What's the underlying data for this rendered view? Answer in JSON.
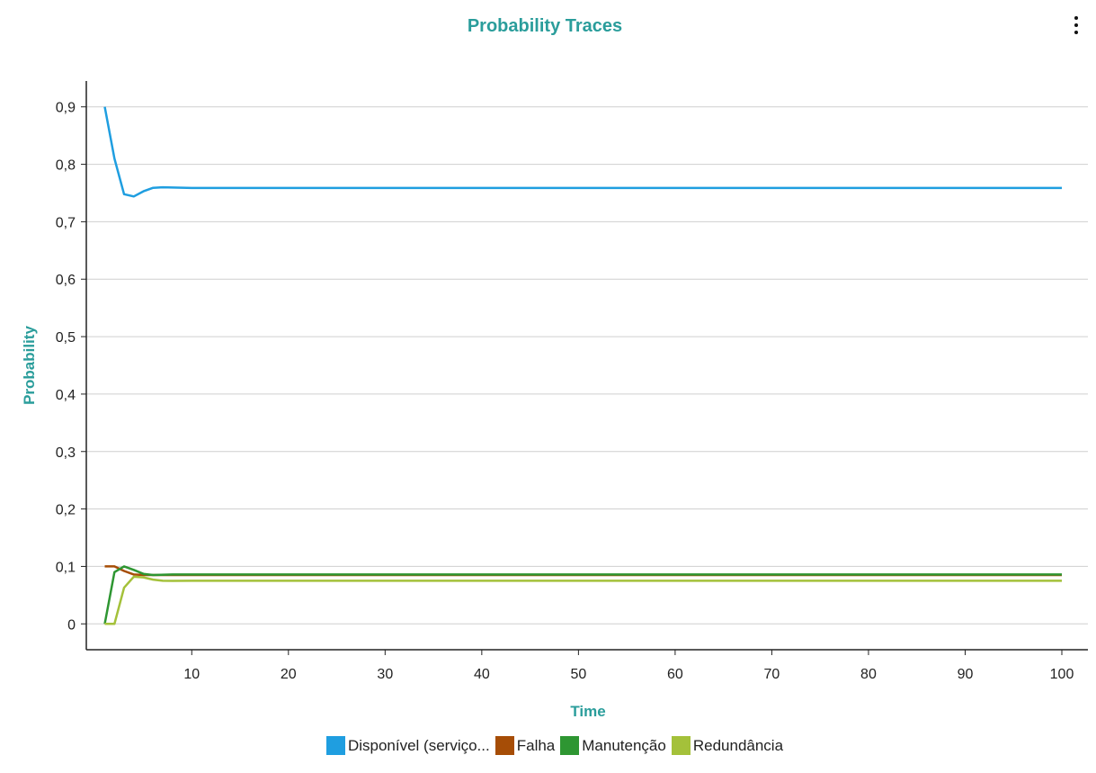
{
  "chart_data": {
    "type": "line",
    "title": "Probability Traces",
    "xlabel": "Time",
    "ylabel": "Probability",
    "xlim": [
      0,
      102
    ],
    "ylim": [
      -0.045,
      0.945
    ],
    "xticks": [
      10,
      20,
      30,
      40,
      50,
      60,
      70,
      80,
      90,
      100
    ],
    "yticks": [
      0,
      0.1,
      0.2,
      0.3,
      0.4,
      0.5,
      0.6,
      0.7,
      0.8,
      0.9
    ],
    "ytick_labels": [
      "0",
      "0,1",
      "0,2",
      "0,3",
      "0,4",
      "0,5",
      "0,6",
      "0,7",
      "0,8",
      "0,9"
    ],
    "grid": "horizontal",
    "legend_position": "bottom",
    "series": [
      {
        "name": "Disponível (serviço...",
        "color": "#1f9ee0",
        "points": [
          [
            1,
            0.9
          ],
          [
            2,
            0.81
          ],
          [
            3,
            0.748
          ],
          [
            4,
            0.744
          ],
          [
            5,
            0.753
          ],
          [
            6,
            0.759
          ],
          [
            7,
            0.76
          ],
          [
            8,
            0.7595
          ],
          [
            10,
            0.7588
          ],
          [
            20,
            0.7588
          ],
          [
            100,
            0.7588
          ]
        ]
      },
      {
        "name": "Falha",
        "color": "#a64d06",
        "points": [
          [
            1,
            0.1
          ],
          [
            2,
            0.1
          ],
          [
            3,
            0.092
          ],
          [
            4,
            0.086
          ],
          [
            5,
            0.085
          ],
          [
            6,
            0.085
          ],
          [
            8,
            0.085
          ],
          [
            20,
            0.085
          ],
          [
            100,
            0.085
          ]
        ]
      },
      {
        "name": "Manutenção",
        "color": "#2e9632",
        "points": [
          [
            1,
            0.0
          ],
          [
            2,
            0.09
          ],
          [
            3,
            0.1
          ],
          [
            4,
            0.094
          ],
          [
            5,
            0.087
          ],
          [
            6,
            0.085
          ],
          [
            8,
            0.086
          ],
          [
            20,
            0.086
          ],
          [
            100,
            0.086
          ]
        ]
      },
      {
        "name": "Redundância",
        "color": "#a4c13a",
        "points": [
          [
            1,
            0.0
          ],
          [
            2,
            0.0
          ],
          [
            3,
            0.063
          ],
          [
            4,
            0.082
          ],
          [
            5,
            0.081
          ],
          [
            6,
            0.077
          ],
          [
            7,
            0.075
          ],
          [
            8,
            0.0748
          ],
          [
            10,
            0.075
          ],
          [
            20,
            0.075
          ],
          [
            100,
            0.075
          ]
        ]
      }
    ]
  },
  "ui": {
    "menu_icon": "more-vertical-icon"
  }
}
